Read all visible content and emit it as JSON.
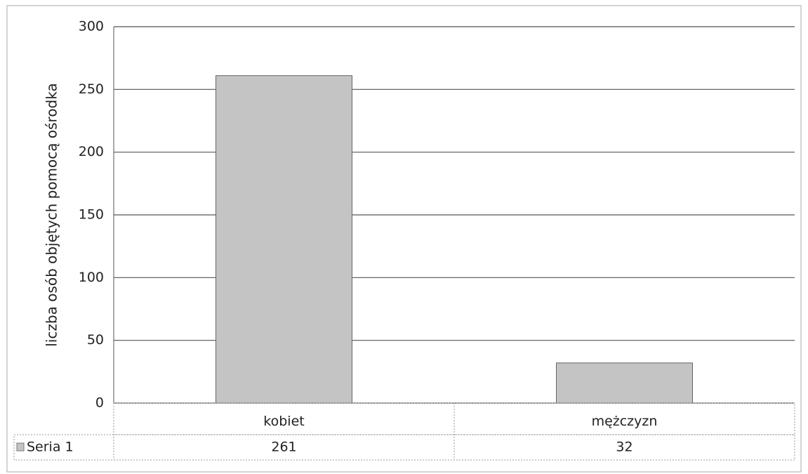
{
  "chart_data": {
    "type": "bar",
    "y_label": "liczba osób objętych pomocą ośrodka",
    "categories": [
      "kobiet",
      "mężczyzn"
    ],
    "series": [
      {
        "name": "Seria 1",
        "color": "#c4c4c4",
        "values": [
          261,
          32
        ]
      }
    ],
    "ylim": [
      0,
      300
    ],
    "yticks": [
      0,
      50,
      100,
      150,
      200,
      250,
      300
    ],
    "grid": true,
    "data_table": true
  }
}
